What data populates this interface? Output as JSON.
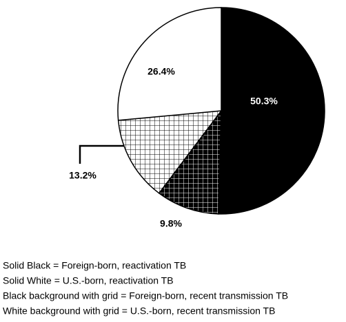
{
  "chart_data": {
    "type": "pie",
    "categories": [
      "Foreign-born, reactivation TB",
      "Foreign-born, recent transmission TB",
      "U.S.-born, recent transmission TB",
      "U.S.-born, reactivation TB"
    ],
    "values": [
      50.3,
      9.8,
      13.2,
      26.4
    ],
    "value_labels": [
      "50.3%",
      "9.8%",
      "13.2%",
      "26.4%"
    ],
    "colors": [
      "#000000",
      "#000000",
      "#ffffff",
      "#ffffff"
    ],
    "grid_pattern": [
      false,
      true,
      true,
      false
    ],
    "notes": [
      "Solid Black = Foreign-born, reactivation TB",
      "Solid White = U.S.-born, reactivation TB",
      "Black background with grid = Foreign-born, recent transmission TB",
      "White background with grid = U.S.-born, recent transmission TB"
    ]
  }
}
